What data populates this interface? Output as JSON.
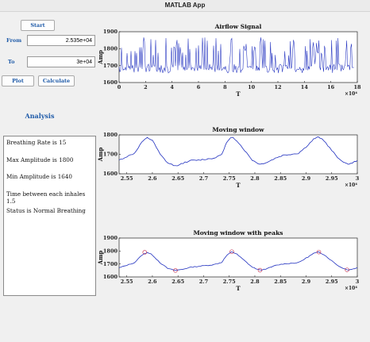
{
  "window": {
    "title": "MATLAB App"
  },
  "controls": {
    "start_label": "Start",
    "from_label": "From",
    "from_value": "2.535e+04",
    "to_label": "To",
    "to_value": "3e+04",
    "plot_label": "Plot",
    "calculate_label": "Calculate"
  },
  "analysis": {
    "title": "Analysis",
    "lines": [
      "Breathing Rate is 15",
      "Max Amplitude is 1800",
      "Min Amplitude is 1640",
      "Time between each inhales 1.5",
      "Status is Normal Breathing"
    ]
  },
  "colors": {
    "signal": "#1f2fbf",
    "peaks": "#c02040",
    "accent": "#1e5aa8"
  },
  "chart_data": [
    {
      "type": "line",
      "title": "Airflow Signal",
      "xlabel": "T",
      "ylabel": "Amp",
      "x_exponent": "×10⁴",
      "xlim": [
        0,
        18
      ],
      "ylim": [
        1600,
        1900
      ],
      "x_ticks": [
        "0",
        "2",
        "4",
        "6",
        "8",
        "10",
        "12",
        "14",
        "16",
        "18"
      ],
      "y_ticks": [
        "1600",
        "1700",
        "1800",
        "1900"
      ],
      "series": [
        {
          "pattern": "noisy-oscillation",
          "baseline": 1690,
          "peak_min": 1760,
          "peak_max": 1870,
          "trough": 1655
        }
      ]
    },
    {
      "type": "line",
      "title": "Moving window",
      "xlabel": "T",
      "ylabel": "Amp",
      "x_exponent": "×10⁴",
      "xlim": [
        2.535,
        3.0
      ],
      "ylim": [
        1600,
        1800
      ],
      "x_ticks": [
        "2.55",
        "2.6",
        "2.65",
        "2.7",
        "2.75",
        "2.8",
        "2.85",
        "2.9",
        "2.95",
        "3"
      ],
      "y_ticks": [
        "1600",
        "1700",
        "1800"
      ],
      "series": [
        {
          "x": [
            2.535,
            2.55,
            2.565,
            2.58,
            2.59,
            2.6,
            2.615,
            2.63,
            2.645,
            2.66,
            2.675,
            2.69,
            2.705,
            2.72,
            2.735,
            2.745,
            2.755,
            2.765,
            2.78,
            2.795,
            2.81,
            2.825,
            2.84,
            2.855,
            2.87,
            2.885,
            2.9,
            2.915,
            2.925,
            2.935,
            2.95,
            2.965,
            2.98,
            2.99,
            3.0
          ],
          "y": [
            1670,
            1688,
            1705,
            1765,
            1785,
            1772,
            1700,
            1655,
            1640,
            1655,
            1668,
            1670,
            1675,
            1680,
            1700,
            1760,
            1790,
            1770,
            1720,
            1670,
            1648,
            1660,
            1680,
            1695,
            1700,
            1705,
            1738,
            1778,
            1790,
            1770,
            1720,
            1675,
            1650,
            1655,
            1668
          ]
        }
      ]
    },
    {
      "type": "line",
      "title": "Moving window with peaks",
      "xlabel": "T",
      "ylabel": "Amp",
      "x_exponent": "×10⁴",
      "xlim": [
        2.535,
        3.0
      ],
      "ylim": [
        1600,
        1900
      ],
      "x_ticks": [
        "2.55",
        "2.6",
        "2.65",
        "2.7",
        "2.75",
        "2.8",
        "2.85",
        "2.9",
        "2.95",
        "3"
      ],
      "y_ticks": [
        "1600",
        "1700",
        "1800",
        "1900"
      ],
      "series": [
        {
          "x": [
            2.535,
            2.55,
            2.565,
            2.58,
            2.59,
            2.6,
            2.615,
            2.63,
            2.645,
            2.66,
            2.675,
            2.69,
            2.705,
            2.72,
            2.735,
            2.745,
            2.755,
            2.765,
            2.78,
            2.795,
            2.81,
            2.825,
            2.84,
            2.855,
            2.87,
            2.885,
            2.9,
            2.915,
            2.925,
            2.935,
            2.95,
            2.965,
            2.98,
            2.99,
            3.0
          ],
          "y": [
            1670,
            1690,
            1710,
            1770,
            1790,
            1770,
            1710,
            1665,
            1650,
            1660,
            1675,
            1682,
            1688,
            1695,
            1712,
            1765,
            1795,
            1775,
            1725,
            1675,
            1652,
            1665,
            1688,
            1700,
            1705,
            1710,
            1745,
            1782,
            1792,
            1772,
            1725,
            1680,
            1655,
            1660,
            1670
          ]
        }
      ],
      "peaks": [
        {
          "x": 2.585,
          "y": 1790
        },
        {
          "x": 2.755,
          "y": 1795
        },
        {
          "x": 2.925,
          "y": 1792
        }
      ],
      "troughs": [
        {
          "x": 2.645,
          "y": 1650
        },
        {
          "x": 2.81,
          "y": 1652
        },
        {
          "x": 2.98,
          "y": 1655
        }
      ]
    }
  ]
}
